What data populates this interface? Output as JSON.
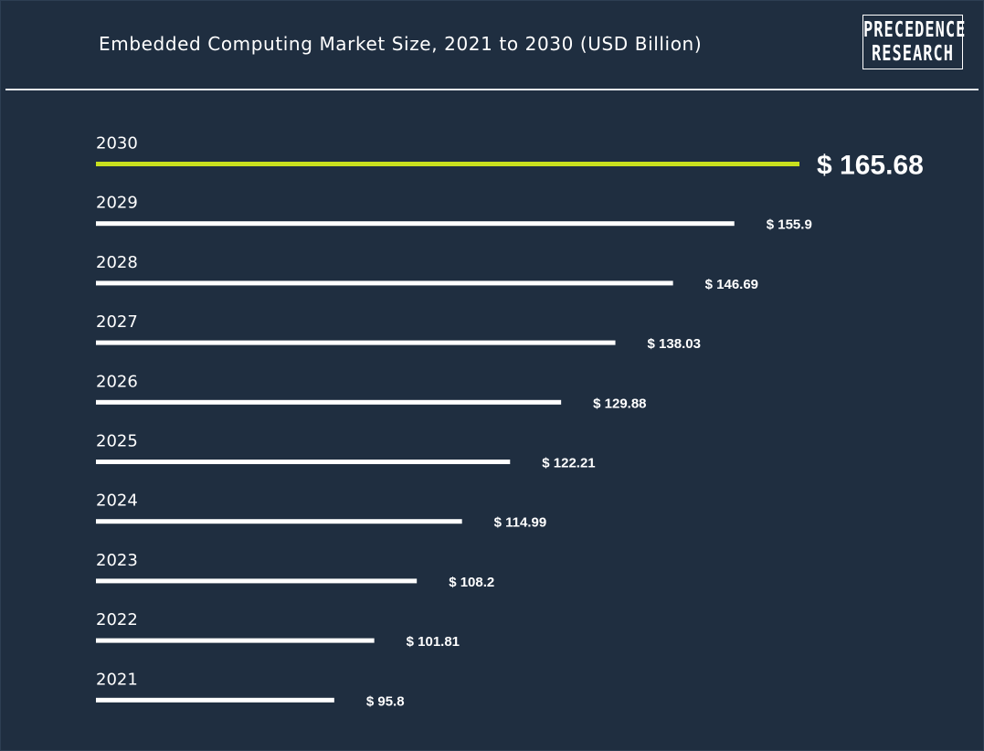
{
  "title": "Embedded Computing Market Size, 2021 to 2030 (USD Billion)",
  "logo": {
    "line1": "PRECEDENCE",
    "line2": "RESEARCH"
  },
  "colors": {
    "background": "#1f2e40",
    "bar": "#ffffff",
    "highlight": "#c8e01e",
    "text": "#ffffff"
  },
  "chart_data": {
    "type": "bar",
    "orientation": "horizontal",
    "title": "Embedded Computing Market Size, 2021 to 2030 (USD Billion)",
    "categories": [
      "2030",
      "2029",
      "2028",
      "2027",
      "2026",
      "2025",
      "2024",
      "2023",
      "2022",
      "2021"
    ],
    "values": [
      165.68,
      155.9,
      146.69,
      138.03,
      129.88,
      122.21,
      114.99,
      108.2,
      101.81,
      95.8
    ],
    "value_labels": [
      "$ 165.68",
      "$ 155.9",
      "$ 146.69",
      "$ 138.03",
      "$ 129.88",
      "$ 122.21",
      "$ 114.99",
      "$ 108.2",
      "$ 101.81",
      "$ 95.8"
    ],
    "highlight_category": "2030",
    "xlabel": "",
    "ylabel": "",
    "grid": false,
    "legend": "none"
  }
}
